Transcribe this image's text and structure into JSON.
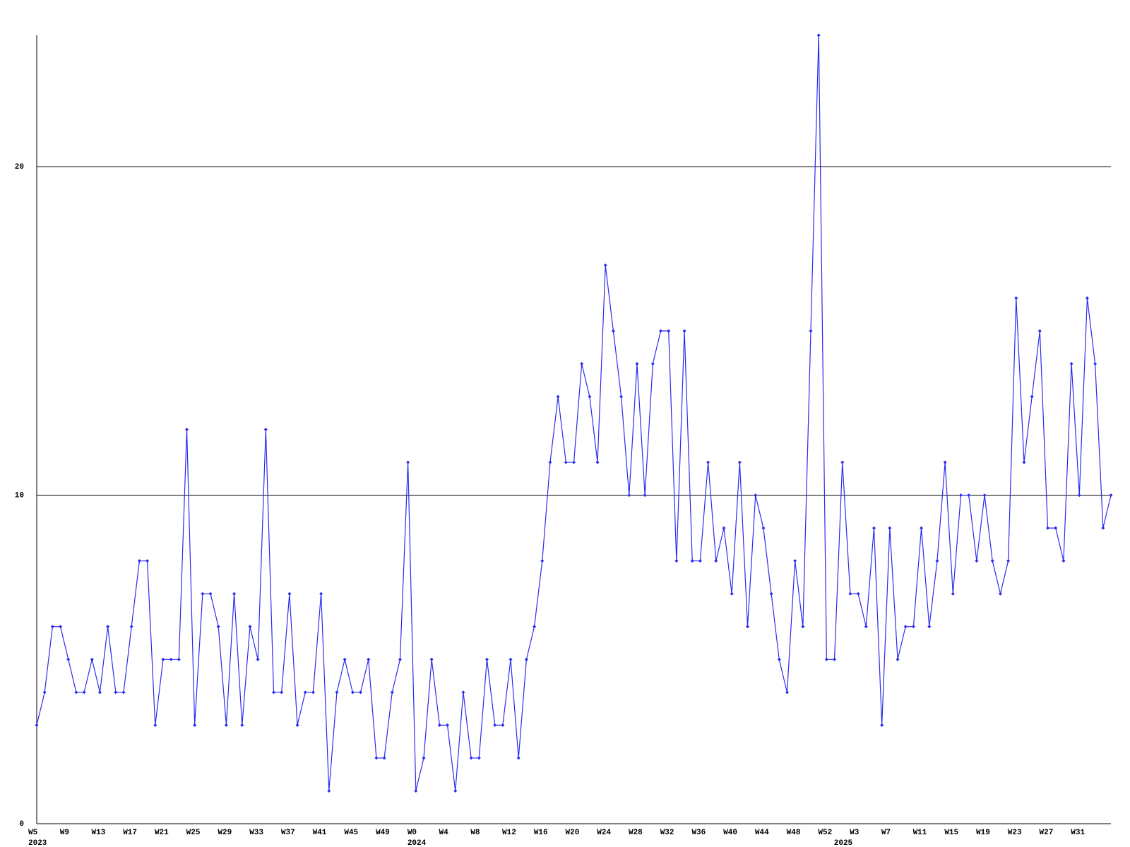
{
  "chart_data": {
    "type": "line",
    "categories": [
      "W5",
      null,
      null,
      null,
      "W9",
      null,
      null,
      null,
      "W13",
      null,
      null,
      null,
      "W17",
      null,
      null,
      null,
      "W21",
      null,
      null,
      null,
      "W25",
      null,
      null,
      null,
      "W29",
      null,
      null,
      null,
      "W33",
      null,
      null,
      null,
      "W37",
      null,
      null,
      null,
      "W41",
      null,
      null,
      null,
      "W45",
      null,
      null,
      null,
      "W49",
      null,
      null,
      null,
      "W0",
      null,
      null,
      null,
      "W4",
      null,
      null,
      null,
      "W8",
      null,
      null,
      null,
      "W12",
      null,
      null,
      null,
      "W16",
      null,
      null,
      null,
      "W20",
      null,
      null,
      null,
      "W24",
      null,
      null,
      null,
      "W28",
      null,
      null,
      null,
      "W32",
      null,
      null,
      null,
      "W36",
      null,
      null,
      null,
      "W40",
      null,
      null,
      null,
      "W44",
      null,
      null,
      null,
      "W48",
      null,
      null,
      null,
      "W52",
      null,
      null,
      null,
      "W3",
      null,
      null,
      null,
      "W7",
      null,
      null,
      null,
      "W11",
      null,
      null,
      null,
      "W15",
      null,
      null,
      null,
      "W19",
      null,
      null,
      null,
      "W23",
      null,
      null,
      null,
      "W27",
      null,
      null,
      null,
      "W31",
      null,
      null,
      null,
      null
    ],
    "years": [
      "2023",
      null,
      null,
      null,
      null,
      null,
      null,
      null,
      null,
      null,
      null,
      null,
      null,
      null,
      null,
      null,
      null,
      null,
      null,
      null,
      null,
      null,
      null,
      null,
      null,
      null,
      null,
      null,
      null,
      null,
      null,
      null,
      null,
      null,
      null,
      null,
      null,
      null,
      null,
      null,
      null,
      null,
      null,
      null,
      null,
      null,
      null,
      null,
      "2024",
      null,
      null,
      null,
      null,
      null,
      null,
      null,
      null,
      null,
      null,
      null,
      null,
      null,
      null,
      null,
      null,
      null,
      null,
      null,
      null,
      null,
      null,
      null,
      null,
      null,
      null,
      null,
      null,
      null,
      null,
      null,
      null,
      null,
      null,
      null,
      null,
      null,
      null,
      null,
      null,
      null,
      null,
      null,
      null,
      null,
      null,
      null,
      null,
      null,
      null,
      null,
      null,
      null,
      "2025",
      null,
      null,
      null,
      null,
      null,
      null,
      null,
      null,
      null,
      null,
      null,
      null,
      null,
      null,
      null,
      null,
      null,
      null,
      null,
      null,
      null,
      null,
      null,
      null,
      null,
      null,
      null,
      null,
      null,
      null,
      null,
      null,
      null,
      null
    ],
    "values": [
      3,
      4,
      6,
      6,
      5,
      4,
      4,
      5,
      4,
      6,
      4,
      4,
      6,
      8,
      8,
      3,
      5,
      5,
      5,
      12,
      3,
      7,
      7,
      6,
      3,
      7,
      3,
      6,
      5,
      12,
      4,
      4,
      7,
      3,
      4,
      4,
      7,
      1,
      4,
      5,
      4,
      4,
      5,
      2,
      2,
      4,
      5,
      11,
      1,
      2,
      5,
      3,
      3,
      1,
      4,
      2,
      2,
      5,
      3,
      3,
      5,
      2,
      5,
      6,
      8,
      11,
      13,
      11,
      11,
      14,
      13,
      11,
      17,
      15,
      13,
      10,
      14,
      10,
      14,
      15,
      15,
      8,
      15,
      8,
      8,
      11,
      8,
      9,
      7,
      11,
      6,
      10,
      9,
      7,
      5,
      4,
      8,
      6,
      15,
      24,
      5,
      5,
      11,
      7,
      7,
      6,
      9,
      3,
      9,
      5,
      6,
      6,
      9,
      6,
      8,
      11,
      7,
      10,
      10,
      8,
      10,
      8,
      7,
      8,
      16,
      11,
      13,
      15,
      9,
      9,
      8,
      14,
      10,
      16,
      14,
      9,
      10
    ],
    "color": "#2b2bf0",
    "ylim": [
      0,
      24
    ],
    "yticks": [
      0,
      10,
      20
    ],
    "grid": true
  }
}
